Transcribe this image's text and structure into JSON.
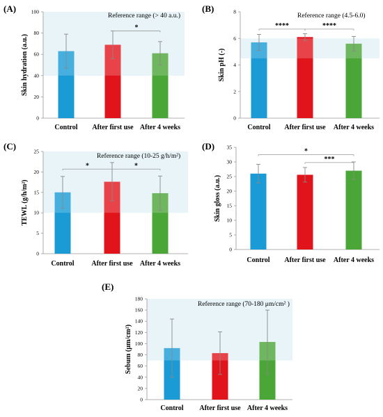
{
  "colors": {
    "control": "#1a9bd6",
    "after_first_use": "#e1141c",
    "after_4_weeks": "#4aa636",
    "reference_band": "#e8f4f8",
    "error_bar": "#888888"
  },
  "chart_data": [
    {
      "label": "(A)",
      "type": "bar",
      "ylabel": "Skin hydration (a.u.)",
      "categories": [
        "Control",
        "After first use",
        "After 4 weeks"
      ],
      "values": [
        63,
        69,
        61
      ],
      "errors": [
        16,
        13,
        11
      ],
      "ylim": [
        0,
        100
      ],
      "yticks": [
        0,
        20,
        40,
        60,
        80,
        100
      ],
      "tick_labels": [
        "0",
        "20",
        "40",
        "60",
        "80",
        "100"
      ],
      "reference_range": [
        40,
        100
      ],
      "reference_text": "Reference range (> 40 a.u.)",
      "significance": [
        {
          "from": 1,
          "to": 2,
          "y": 82,
          "label": "*"
        }
      ]
    },
    {
      "label": "(B)",
      "type": "bar",
      "ylabel": "Skin pH (-)",
      "categories": [
        "Control",
        "After first use",
        "After 4 weeks"
      ],
      "values": [
        5.7,
        6.1,
        5.6
      ],
      "errors": [
        0.6,
        0.25,
        0.55
      ],
      "ylim": [
        0,
        8
      ],
      "yticks": [
        0,
        2,
        4,
        6,
        8
      ],
      "tick_labels": [
        "0",
        "2",
        "4",
        "6",
        "8"
      ],
      "reference_range": [
        4.5,
        6.0
      ],
      "reference_text": "Reference range (4.5-6.0)",
      "significance": [
        {
          "from": 0,
          "to": 1,
          "y": 6.7,
          "label": "****"
        },
        {
          "from": 1,
          "to": 2,
          "y": 6.7,
          "label": "****"
        }
      ]
    },
    {
      "label": "(C)",
      "type": "bar",
      "ylabel": "TEWL (g/h/m²)",
      "categories": [
        "Control",
        "After first use",
        "After 4 weeks"
      ],
      "values": [
        15,
        17.6,
        14.8
      ],
      "errors": [
        3.9,
        4.7,
        4.2
      ],
      "ylim": [
        0,
        25
      ],
      "yticks": [
        0,
        5,
        10,
        15,
        20,
        25
      ],
      "tick_labels": [
        "0",
        "5",
        "10",
        "15",
        "20",
        "25"
      ],
      "reference_range": [
        10,
        25
      ],
      "reference_text": "Reference range (10-25 g/h/m²)",
      "significance": [
        {
          "from": 0,
          "to": 1,
          "y": 20.7,
          "label": "*"
        },
        {
          "from": 1,
          "to": 2,
          "y": 20.7,
          "label": "*"
        }
      ]
    },
    {
      "label": "(D)",
      "type": "bar",
      "ylabel": "Skin gloss (a.u.)",
      "categories": [
        "Control",
        "After first use",
        "After 4 weeks"
      ],
      "values": [
        26,
        25.6,
        27
      ],
      "errors": [
        3.2,
        2.5,
        3
      ],
      "ylim": [
        0,
        35
      ],
      "yticks": [
        0,
        5,
        10,
        15,
        20,
        25,
        30,
        35
      ],
      "tick_labels": [
        "0",
        "5",
        "10",
        "15",
        "20",
        "25",
        "30",
        "35"
      ],
      "reference_range": null,
      "reference_text": "",
      "significance": [
        {
          "from": 0,
          "to": 2,
          "y": 32.5,
          "label": "*"
        },
        {
          "from": 1,
          "to": 2,
          "y": 29.8,
          "label": "***"
        }
      ]
    },
    {
      "label": "(E)",
      "type": "bar",
      "ylabel": "Sebum (μm/cm²)",
      "categories": [
        "Control",
        "After first use",
        "After 4 weeks"
      ],
      "values": [
        92,
        83,
        103
      ],
      "errors": [
        52,
        38,
        57
      ],
      "ylim": [
        0,
        180
      ],
      "yticks": [
        0,
        20,
        40,
        60,
        80,
        100,
        120,
        140,
        160,
        180
      ],
      "tick_labels": [
        "0",
        "20",
        "40",
        "60",
        "80",
        "100",
        "120",
        "140",
        "160",
        "180"
      ],
      "reference_range": [
        70,
        180
      ],
      "reference_text": "Reference range (70-180 μm/cm² )",
      "significance": []
    }
  ]
}
